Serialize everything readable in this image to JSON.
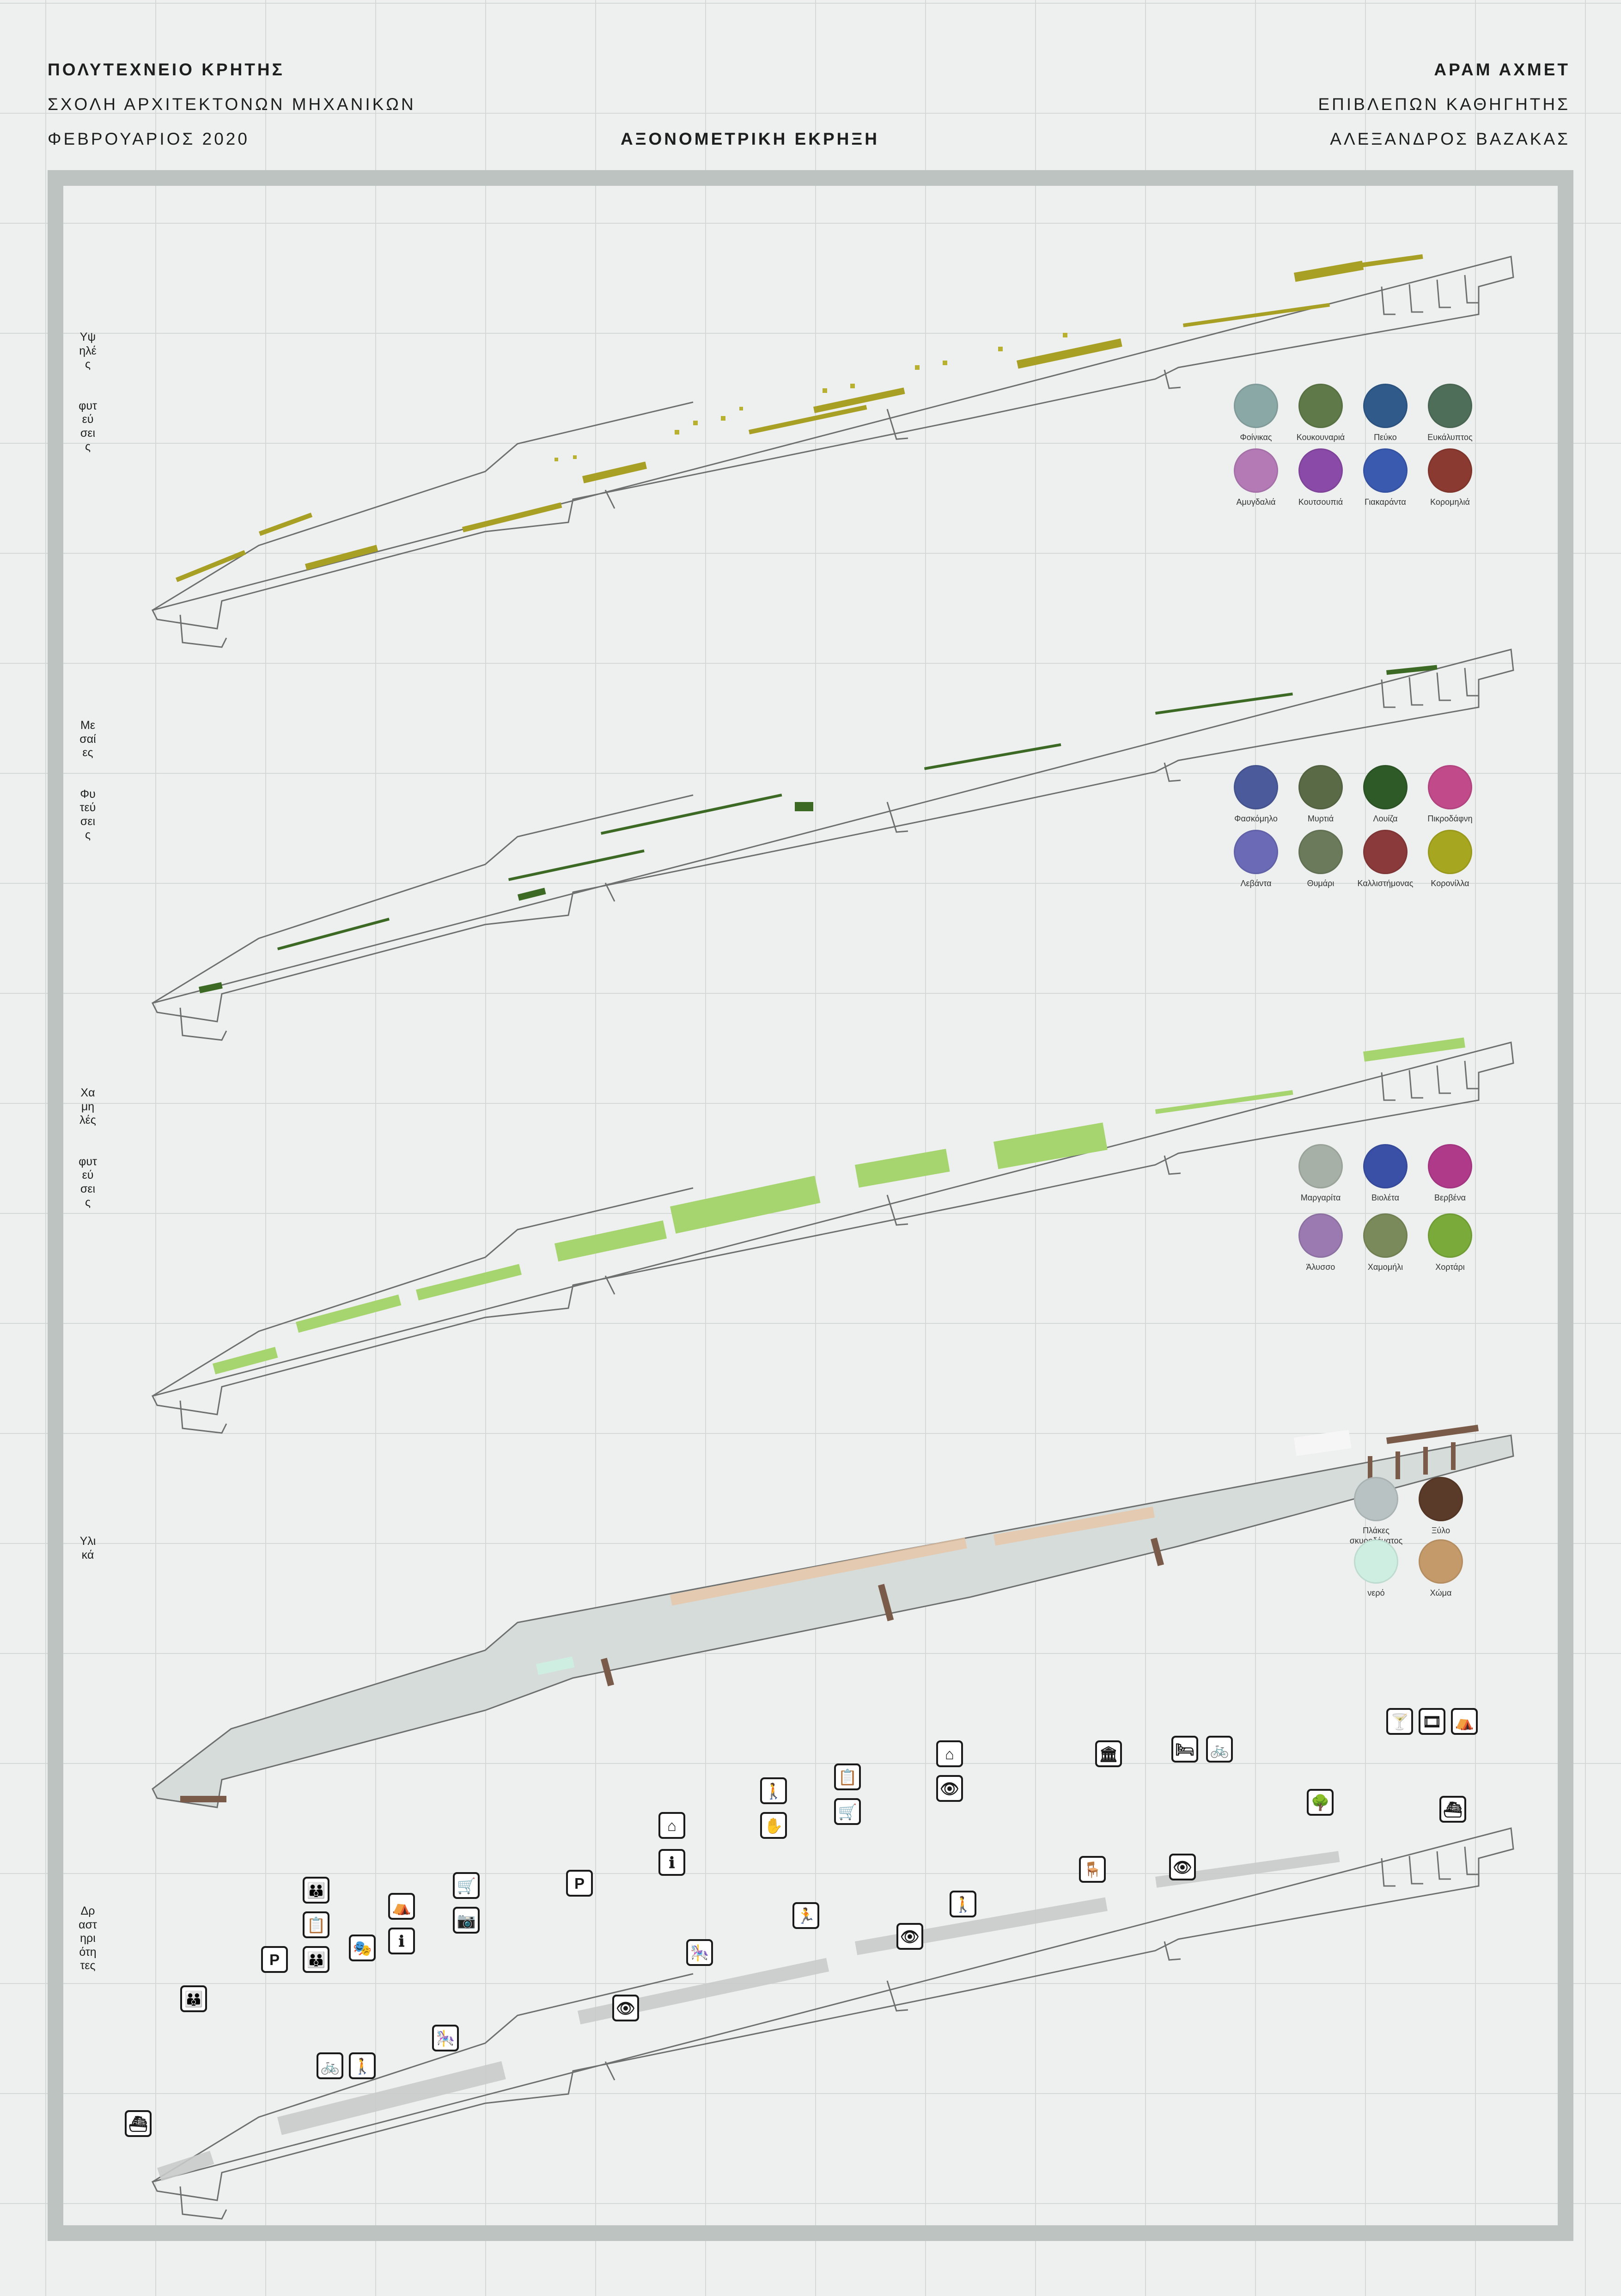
{
  "header": {
    "university": "ΠΟΛΥΤΕΧΝΕΙΟ ΚΡΗΤΗΣ",
    "school": "ΣΧΟΛΗ ΑΡΧΙΤΕΚΤΟΝΩΝ ΜΗΧΑΝΙΚΩΝ",
    "date": "ΦΕΒΡΟΥΑΡΙΟΣ 2020",
    "title": "ΑΞΟΝΟΜΕΤΡΙΚΗ ΕΚΡΗΞΗ",
    "author": "ΑΡΑΜ ΑΧΜΕΤ",
    "supervisor_label": "ΕΠΙΒΛΕΠΩΝ ΚΑΘΗΓΗΤΗΣ",
    "supervisor": "ΑΛΕΞΑΝΔΡΟΣ ΒΑΖΑΚΑΣ"
  },
  "layers": [
    {
      "label_words": [
        "Υψηλές",
        "φυτεύσεις"
      ],
      "color": "#a8a024"
    },
    {
      "label_words": [
        "Μεσαίες",
        "Φυτεύσεις"
      ],
      "color": "#3c6a24"
    },
    {
      "label_words": [
        "Χαμηλές",
        "φυτεύσεις"
      ],
      "color": "#a6d46e"
    },
    {
      "label_words": [
        "Υλικά"
      ],
      "color": "#7a5a48"
    },
    {
      "label_words": [
        "Δραστηριότητες"
      ],
      "color": "#1a1a1a"
    }
  ],
  "legend_high": [
    {
      "name": "Φοίνικας",
      "color": "#8aa8a6"
    },
    {
      "name": "Κουκουναριά",
      "color": "#5f7a48"
    },
    {
      "name": "Πεύκο",
      "color": "#2f5a8a"
    },
    {
      "name": "Ευκάλυπτος",
      "color": "#4f6e5a"
    },
    {
      "name": "Αμυγδαλιά",
      "color": "#b37ab6"
    },
    {
      "name": "Κουτσουπιά",
      "color": "#8a4aa8"
    },
    {
      "name": "Γιακαράντα",
      "color": "#3a5ab0"
    },
    {
      "name": "Κορομηλιά",
      "color": "#8a3a30"
    }
  ],
  "legend_mid": [
    {
      "name": "Φασκόμηλο",
      "color": "#4a5a9a"
    },
    {
      "name": "Μυρτιά",
      "color": "#5a6a46"
    },
    {
      "name": "Λουίζα",
      "color": "#2e5a28"
    },
    {
      "name": "Πικροδάφνη",
      "color": "#c04a8a"
    },
    {
      "name": "Λεβάντα",
      "color": "#6a6ab6"
    },
    {
      "name": "Θυμάρι",
      "color": "#6a7a5a"
    },
    {
      "name": "Καλλιστήμονας",
      "color": "#8a3a3a"
    },
    {
      "name": "Κορονίλλα",
      "color": "#a6a620"
    }
  ],
  "legend_low": [
    {
      "name": "Μαργαρίτα",
      "color": "#a6b0a6"
    },
    {
      "name": "Βιολέτα",
      "color": "#3a50a6"
    },
    {
      "name": "Βερβένα",
      "color": "#b03a8a"
    },
    {
      "name": "Άλυσσο",
      "color": "#9a7ab0"
    },
    {
      "name": "Χαμομήλι",
      "color": "#7a8a5a"
    },
    {
      "name": "Χορτάρι",
      "color": "#7aaa3a"
    }
  ],
  "legend_materials": [
    {
      "name": "Πλάκες σκυροδέματος",
      "color": "#b8c2c2"
    },
    {
      "name": "Ξύλο",
      "color": "#5a3a28"
    },
    {
      "name": "νερό",
      "color": "#cfeee2"
    },
    {
      "name": "Χώμα",
      "color": "#c49a6a"
    }
  ],
  "activity_icons": [
    {
      "name": "cocktail-icon",
      "glyph": "🍸"
    },
    {
      "name": "cinema-icon",
      "glyph": "🎞"
    },
    {
      "name": "market-icon",
      "glyph": "⛺"
    },
    {
      "name": "boat-icon",
      "glyph": "⛴"
    },
    {
      "name": "trees-icon",
      "glyph": "🌳"
    },
    {
      "name": "museum-icon",
      "glyph": "🏛"
    },
    {
      "name": "bed-icon",
      "glyph": "🛏"
    },
    {
      "name": "bicycle-icon",
      "glyph": "🚲"
    },
    {
      "name": "home-icon",
      "glyph": "⌂"
    },
    {
      "name": "viewpoint-icon",
      "glyph": "👁"
    },
    {
      "name": "picnic-icon",
      "glyph": "🪑"
    },
    {
      "name": "info-icon",
      "glyph": "ℹ"
    },
    {
      "name": "shopping-icon",
      "glyph": "🛒"
    },
    {
      "name": "person-icon",
      "glyph": "🚶"
    },
    {
      "name": "hand-icon",
      "glyph": "✋"
    },
    {
      "name": "parking-icon",
      "glyph": "P"
    },
    {
      "name": "theater-icon",
      "glyph": "🎭"
    },
    {
      "name": "people-icon",
      "glyph": "👪"
    },
    {
      "name": "exercise-icon",
      "glyph": "🏃"
    },
    {
      "name": "lecture-icon",
      "glyph": "📋"
    },
    {
      "name": "playground-icon",
      "glyph": "🎠"
    },
    {
      "name": "camera-icon",
      "glyph": "📷"
    }
  ]
}
